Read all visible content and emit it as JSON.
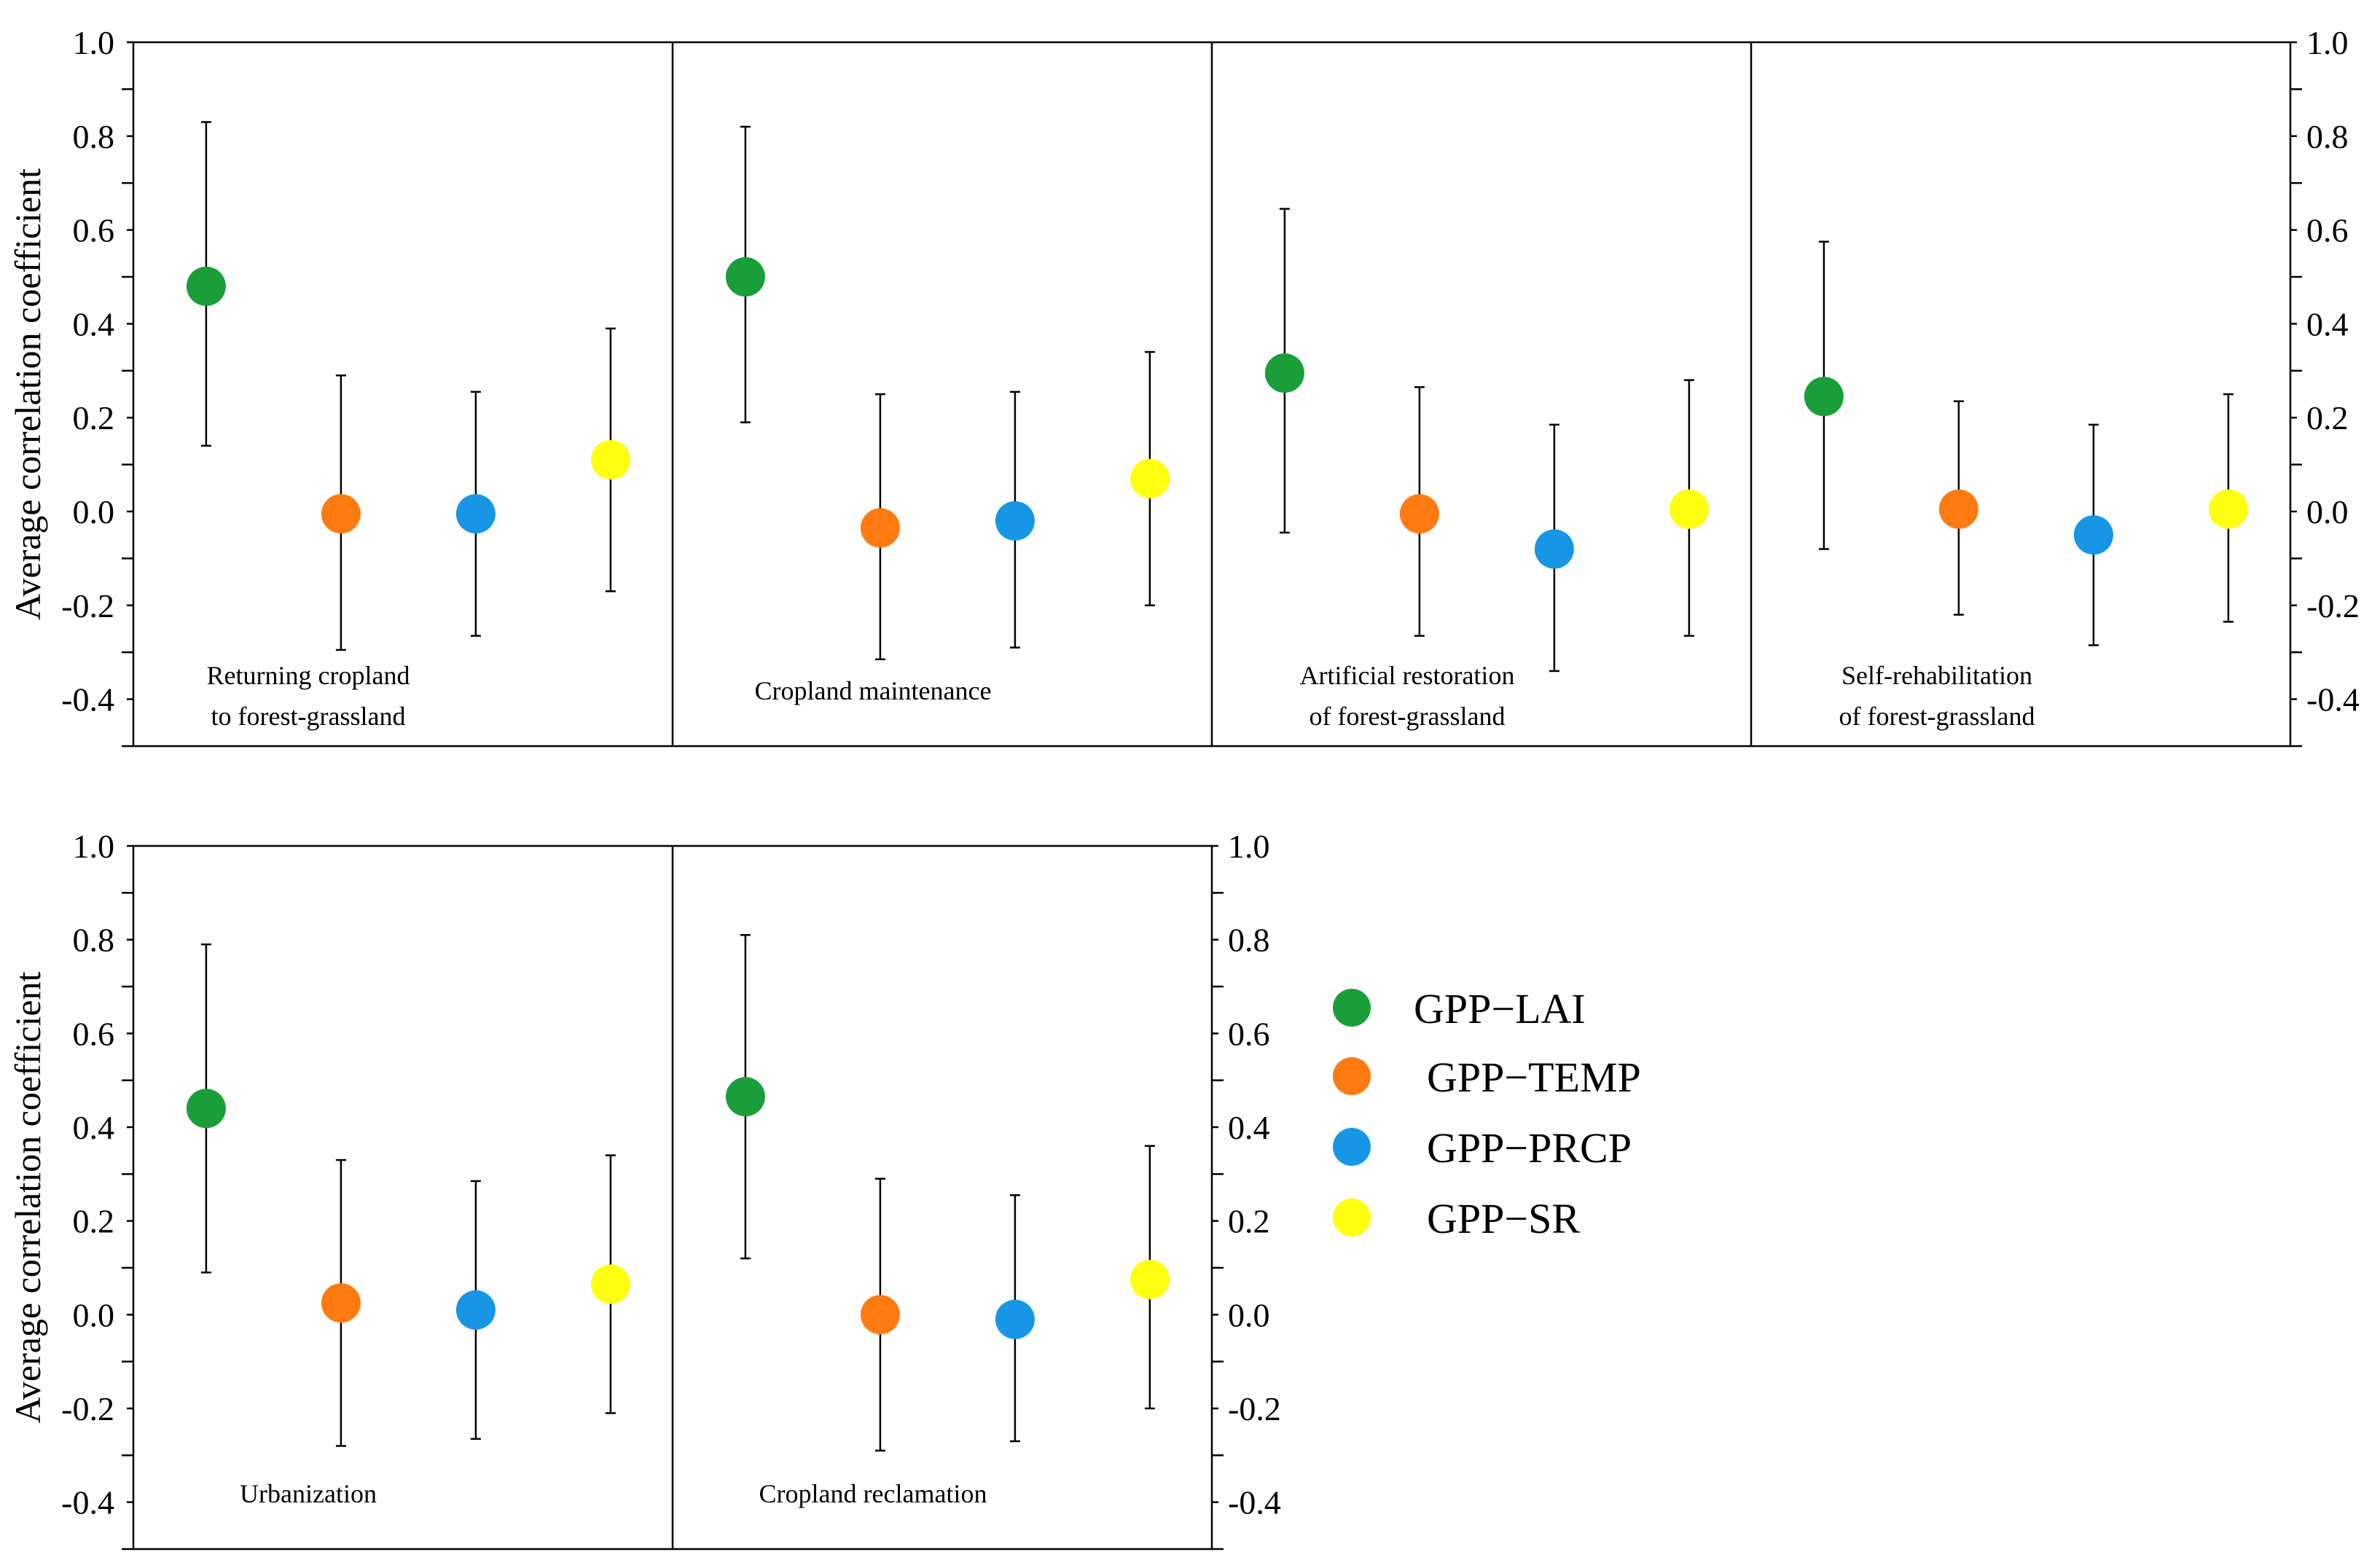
{
  "chart_data": {
    "type": "scatter",
    "ylabel": "Average correlation coefficient",
    "ylim": [
      -0.5,
      1.0
    ],
    "yticks": [
      "1.0",
      "0.8",
      "0.6",
      "0.4",
      "0.2",
      "0.0",
      "-0.2",
      "-0.4"
    ],
    "legend": [
      {
        "name": "GPP−LAI",
        "color": "#1a9e3a"
      },
      {
        "name": "GPP−TEMP",
        "color": "#ff7b12"
      },
      {
        "name": "GPP−PRCP",
        "color": "#1796e6"
      },
      {
        "name": "GPP−SR",
        "color": "#ffff10"
      }
    ],
    "rows": [
      {
        "panels": [
          {
            "label": [
              "Returning cropland",
              "to forest-grassland"
            ],
            "points": [
              {
                "series": "GPP−LAI",
                "mean": 0.48,
                "low": 0.14,
                "high": 0.83
              },
              {
                "series": "GPP−TEMP",
                "mean": -0.005,
                "low": -0.295,
                "high": 0.29
              },
              {
                "series": "GPP−PRCP",
                "mean": -0.005,
                "low": -0.265,
                "high": 0.255
              },
              {
                "series": "GPP−SR",
                "mean": 0.11,
                "low": -0.17,
                "high": 0.39
              }
            ]
          },
          {
            "label": [
              "Cropland maintenance"
            ],
            "points": [
              {
                "series": "GPP−LAI",
                "mean": 0.5,
                "low": 0.19,
                "high": 0.82
              },
              {
                "series": "GPP−TEMP",
                "mean": -0.035,
                "low": -0.315,
                "high": 0.25
              },
              {
                "series": "GPP−PRCP",
                "mean": -0.02,
                "low": -0.29,
                "high": 0.255
              },
              {
                "series": "GPP−SR",
                "mean": 0.07,
                "low": -0.2,
                "high": 0.34
              }
            ]
          },
          {
            "label": [
              "Artificial restoration",
              "of forest-grassland"
            ],
            "points": [
              {
                "series": "GPP−LAI",
                "mean": 0.295,
                "low": -0.045,
                "high": 0.645
              },
              {
                "series": "GPP−TEMP",
                "mean": -0.005,
                "low": -0.265,
                "high": 0.265
              },
              {
                "series": "GPP−PRCP",
                "mean": -0.08,
                "low": -0.34,
                "high": 0.185
              },
              {
                "series": "GPP−SR",
                "mean": 0.005,
                "low": -0.265,
                "high": 0.28
              }
            ]
          },
          {
            "label": [
              "Self-rehabilitation",
              "of forest-grassland"
            ],
            "points": [
              {
                "series": "GPP−LAI",
                "mean": 0.245,
                "low": -0.08,
                "high": 0.575
              },
              {
                "series": "GPP−TEMP",
                "mean": 0.005,
                "low": -0.22,
                "high": 0.235
              },
              {
                "series": "GPP−PRCP",
                "mean": -0.05,
                "low": -0.285,
                "high": 0.185
              },
              {
                "series": "GPP−SR",
                "mean": 0.005,
                "low": -0.235,
                "high": 0.25
              }
            ]
          }
        ]
      },
      {
        "panels": [
          {
            "label": [
              "Urbanization"
            ],
            "points": [
              {
                "series": "GPP−LAI",
                "mean": 0.44,
                "low": 0.09,
                "high": 0.79
              },
              {
                "series": "GPP−TEMP",
                "mean": 0.025,
                "low": -0.28,
                "high": 0.33
              },
              {
                "series": "GPP−PRCP",
                "mean": 0.01,
                "low": -0.265,
                "high": 0.285
              },
              {
                "series": "GPP−SR",
                "mean": 0.065,
                "low": -0.21,
                "high": 0.34
              }
            ]
          },
          {
            "label": [
              "Cropland reclamation"
            ],
            "points": [
              {
                "series": "GPP−LAI",
                "mean": 0.465,
                "low": 0.12,
                "high": 0.81
              },
              {
                "series": "GPP−TEMP",
                "mean": 0.0,
                "low": -0.29,
                "high": 0.29
              },
              {
                "series": "GPP−PRCP",
                "mean": -0.01,
                "low": -0.27,
                "high": 0.255
              },
              {
                "series": "GPP−SR",
                "mean": 0.075,
                "low": -0.2,
                "high": 0.36
              }
            ]
          }
        ]
      }
    ]
  }
}
